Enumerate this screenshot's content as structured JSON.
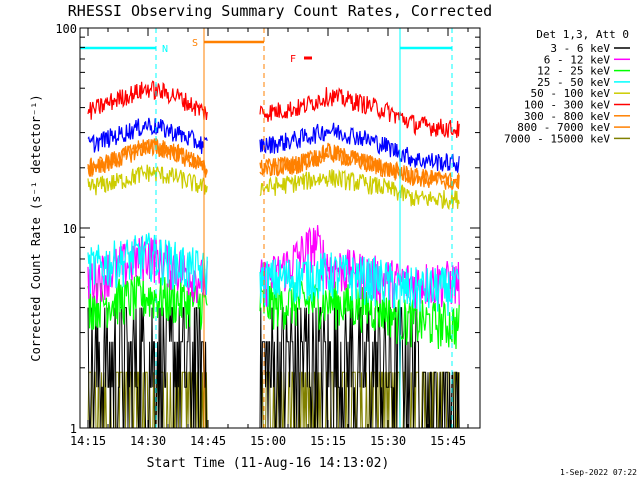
{
  "chart_data": {
    "type": "line",
    "title": "RHESSI Observing Summary Count Rates, Corrected",
    "xlabel": "Start Time (11-Aug-16 14:13:02)",
    "ylabel": "Corrected Count Rate (s⁻¹ detector⁻¹)",
    "y_scale": "log",
    "ylim": [
      1,
      100
    ],
    "xlim": [
      "14:13",
      "15:53"
    ],
    "x_ticks": [
      "14:15",
      "14:30",
      "14:45",
      "15:00",
      "15:15",
      "15:30",
      "15:45"
    ],
    "y_ticks": [
      "1",
      "10",
      "100"
    ],
    "legend_title": "Det 1,3, Att 0",
    "legend_position": "right",
    "data_gap": [
      "14:45",
      "14:58"
    ],
    "series": [
      {
        "name": "3 - 6 keV",
        "color": "#000000",
        "x": [
          "14:15",
          "14:30",
          "14:44",
          "15:00",
          "15:15",
          "15:29",
          "15:33",
          "15:45",
          "15:48"
        ],
        "y": [
          2.7,
          2.7,
          2.7,
          2.7,
          2.7,
          2.6,
          2.6,
          1.5,
          1.3
        ]
      },
      {
        "name": "6 - 12 keV",
        "color": "#ff00ff",
        "x": [
          "14:15",
          "14:30",
          "14:44",
          "15:00",
          "15:12",
          "15:15",
          "15:29",
          "15:33",
          "15:48"
        ],
        "y": [
          5.5,
          7.5,
          5.5,
          5.5,
          8.5,
          6.5,
          5.6,
          5.4,
          5.4
        ]
      },
      {
        "name": "12 - 25 keV",
        "color": "#00ff00",
        "x": [
          "14:15",
          "14:30",
          "14:44",
          "15:00",
          "15:15",
          "15:29",
          "15:33",
          "15:48"
        ],
        "y": [
          4.2,
          4.6,
          4.2,
          4.2,
          4.3,
          4.0,
          3.5,
          3.3
        ]
      },
      {
        "name": "25 - 50 keV",
        "color": "#00ffff",
        "x": [
          "14:15",
          "14:30",
          "14:44",
          "15:00",
          "15:15",
          "15:29",
          "15:33",
          "15:48"
        ],
        "y": [
          6.3,
          7.5,
          6.0,
          5.5,
          6.0,
          5.5,
          5.0,
          5.0
        ]
      },
      {
        "name": "50 - 100 keV",
        "color": "#cccc00",
        "x": [
          "14:15",
          "14:22",
          "14:30",
          "14:37",
          "14:44",
          "15:00",
          "15:08",
          "15:15",
          "15:22",
          "15:29",
          "15:37",
          "15:48"
        ],
        "y": [
          16,
          17,
          19,
          18,
          16,
          16,
          17,
          18,
          17,
          16,
          14,
          14
        ]
      },
      {
        "name": "100 - 300 keV",
        "color": "#ff0000",
        "x": [
          "14:15",
          "14:22",
          "14:30",
          "14:37",
          "14:44",
          "15:00",
          "15:08",
          "15:15",
          "15:22",
          "15:29",
          "15:37",
          "15:48"
        ],
        "y": [
          38,
          44,
          50,
          46,
          38,
          38,
          40,
          46,
          43,
          39,
          33,
          31
        ]
      },
      {
        "name": "300 - 800 keV",
        "color": "#ff8000",
        "x": [
          "14:15",
          "14:22",
          "14:30",
          "14:37",
          "14:44",
          "15:00",
          "15:08",
          "15:15",
          "15:22",
          "15:29",
          "15:37",
          "15:48"
        ],
        "y": [
          20,
          22,
          26,
          24,
          20,
          20,
          21,
          24,
          22,
          20,
          18,
          17
        ]
      },
      {
        "name": "800 - 7000 keV",
        "color": "#ff8000",
        "x": [
          "14:15",
          "14:22",
          "14:30",
          "14:37",
          "14:44",
          "15:00",
          "15:08",
          "15:15",
          "15:22",
          "15:29",
          "15:37",
          "15:48"
        ],
        "y": [
          20,
          22,
          26,
          24,
          20,
          20,
          21,
          24,
          22,
          20,
          18,
          17
        ]
      },
      {
        "name": "7000 - 15000 keV",
        "color": "#808000",
        "x": [
          "14:15",
          "14:30",
          "14:44",
          "15:00",
          "15:15",
          "15:29",
          "15:33",
          "15:48"
        ],
        "y": [
          1.6,
          1.6,
          1.6,
          1.6,
          1.6,
          1.6,
          1.4,
          1.2
        ]
      }
    ],
    "blue_band": {
      "color": "#0000ff",
      "x": [
        "14:15",
        "14:22",
        "14:30",
        "14:37",
        "14:44",
        "15:00",
        "15:08",
        "15:15",
        "15:22",
        "15:29",
        "15:37",
        "15:48"
      ],
      "y": [
        26,
        29,
        33,
        30,
        26,
        26,
        28,
        31,
        29,
        26,
        22,
        21
      ]
    },
    "flag_bars": [
      {
        "label": "N",
        "color": "#00ffff",
        "segments": [
          [
            "14:13",
            "14:32"
          ],
          [
            "15:33",
            "15:46"
          ]
        ]
      },
      {
        "label": "S",
        "color": "#ff8000",
        "segments": [
          [
            "14:44",
            "14:59"
          ]
        ]
      },
      {
        "label": "F",
        "color": "#ff0000",
        "segments": [
          [
            "15:09",
            "15:11"
          ]
        ]
      }
    ],
    "vertical_markers": [
      {
        "color": "#00ffff",
        "style": "dashed",
        "x": "14:32"
      },
      {
        "color": "#ff8000",
        "style": "solid",
        "x": "14:44"
      },
      {
        "color": "#ff8000",
        "style": "dashed",
        "x": "14:59"
      },
      {
        "color": "#00ffff",
        "style": "solid",
        "x": "15:33"
      },
      {
        "color": "#00ffff",
        "style": "dashed",
        "x": "15:46"
      }
    ]
  },
  "footer": {
    "timestamp": "1-Sep-2022 07:22"
  }
}
